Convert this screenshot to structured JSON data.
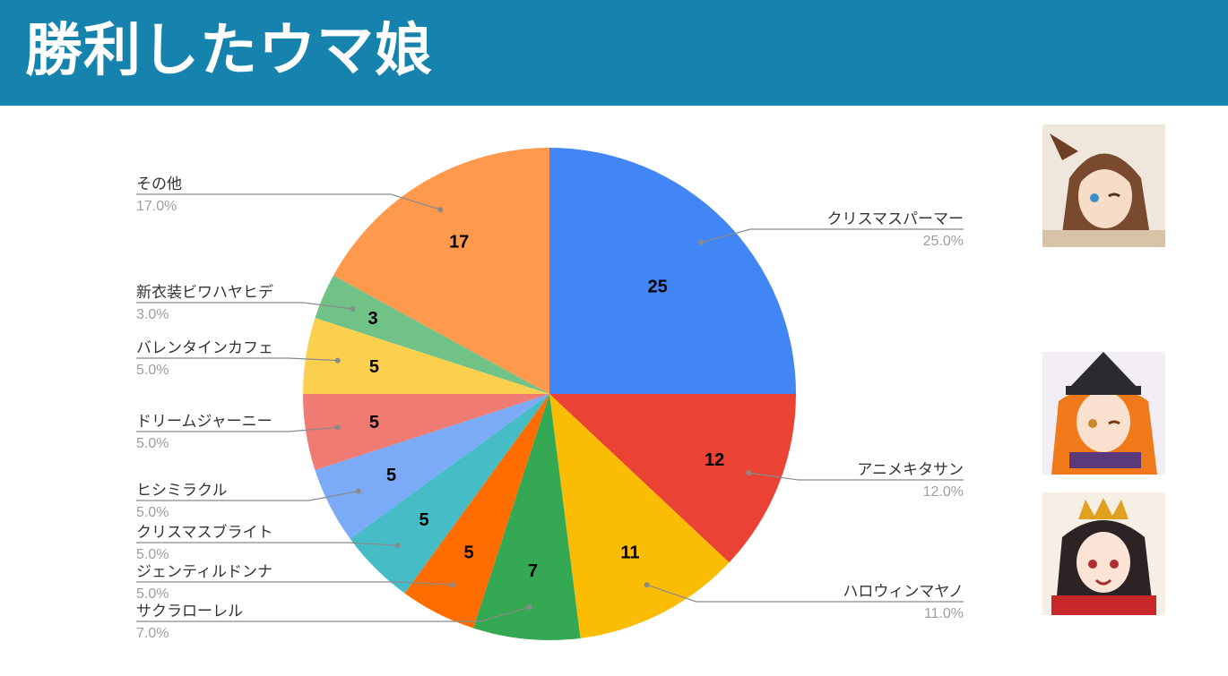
{
  "header": {
    "title": "勝利したウマ娘"
  },
  "chart_data": {
    "type": "pie",
    "title": "",
    "start_angle_deg": 0,
    "direction": "clockwise",
    "slices": [
      {
        "label": "クリスマスパーマー",
        "value": 25,
        "percent": "25.0%",
        "color": "#4285f4"
      },
      {
        "label": "アニメキタサン",
        "value": 12,
        "percent": "12.0%",
        "color": "#ea4335"
      },
      {
        "label": "ハロウィンマヤノ",
        "value": 11,
        "percent": "11.0%",
        "color": "#fbbc04"
      },
      {
        "label": "サクラローレル",
        "value": 7,
        "percent": "7.0%",
        "color": "#34a853"
      },
      {
        "label": "ジェンティルドンナ",
        "value": 5,
        "percent": "5.0%",
        "color": "#ff6d01"
      },
      {
        "label": "クリスマスブライト",
        "value": 5,
        "percent": "5.0%",
        "color": "#46bdc6"
      },
      {
        "label": "ヒシミラクル",
        "value": 5,
        "percent": "5.0%",
        "color": "#7baaf7"
      },
      {
        "label": "ドリームジャーニー",
        "value": 5,
        "percent": "5.0%",
        "color": "#f07b72"
      },
      {
        "label": "バレンタインカフェ",
        "value": 5,
        "percent": "5.0%",
        "color": "#fcd04f"
      },
      {
        "label": "新衣装ビワハヤヒデ",
        "value": 3,
        "percent": "3.0%",
        "color": "#71c287"
      },
      {
        "label": "その他",
        "value": 17,
        "percent": "17.0%",
        "color": "#ff994d"
      }
    ]
  },
  "avatars": [
    {
      "name": "avatar-christmas-palmer",
      "hair": "#7a4a2e",
      "bg": "#efe6dc"
    },
    {
      "name": "avatar-halloween-mayano",
      "hair": "#f07a1a",
      "bg": "#f3eef5"
    },
    {
      "name": "avatar-anime-kitasan",
      "hair": "#2b2324",
      "bg": "#f6efe6"
    }
  ]
}
